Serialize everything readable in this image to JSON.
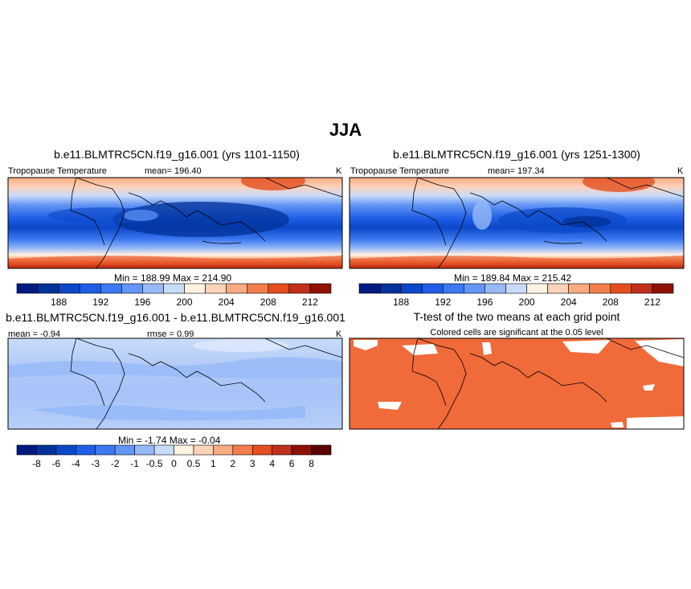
{
  "season": "JJA",
  "panels": [
    {
      "title": "b.e11.BLMTRC5CN.f19_g16.001 (yrs 1101-1150)",
      "left_label": "Tropopause Temperature",
      "mean_label": "mean= 196.40",
      "units": "K",
      "minmax": "Min = 188.99 Max = 214.90",
      "colorbar_ticks": [
        "188",
        "192",
        "196",
        "200",
        "204",
        "208",
        "212"
      ],
      "colorbar_colors": [
        "#001a82",
        "#00329a",
        "#0a48c8",
        "#1e5ee6",
        "#3c78f0",
        "#6496f5",
        "#96b9f8",
        "#c8dcfa",
        "#fff2e1",
        "#fcd2b9",
        "#f8aa80",
        "#f27f4b",
        "#e44f1f",
        "#c0301a",
        "#8f1208"
      ]
    },
    {
      "title": "b.e11.BLMTRC5CN.f19_g16.001 (yrs 1251-1300)",
      "left_label": "Tropopause Temperature",
      "mean_label": "mean= 197.34",
      "units": "K",
      "minmax": "Min = 189.84 Max = 215.42",
      "colorbar_ticks": [
        "188",
        "192",
        "196",
        "200",
        "204",
        "208",
        "212"
      ],
      "colorbar_colors": [
        "#001a82",
        "#00329a",
        "#0a48c8",
        "#1e5ee6",
        "#3c78f0",
        "#6496f5",
        "#96b9f8",
        "#c8dcfa",
        "#fff2e1",
        "#fcd2b9",
        "#f8aa80",
        "#f27f4b",
        "#e44f1f",
        "#c0301a",
        "#8f1208"
      ]
    },
    {
      "title": "b.e11.BLMTRC5CN.f19_g16.001 - b.e11.BLMTRC5CN.f19_g16.001",
      "mean_label": "mean =  -0.94",
      "rmse_label": "rmse =   0.99",
      "units": "K",
      "minmax": "Min =  -1.74 Max =  -0.04",
      "colorbar_ticks": [
        "-8",
        "-6",
        "-4",
        "-3",
        "-2",
        "-1",
        "-0.5",
        "0",
        "0.5",
        "1",
        "2",
        "3",
        "4",
        "6",
        "8"
      ],
      "colorbar_colors": [
        "#001a82",
        "#00329a",
        "#0a48c8",
        "#1e5ee6",
        "#3c78f0",
        "#6496f5",
        "#96b9f8",
        "#c8dcfa",
        "#fff2e1",
        "#fcd2b9",
        "#f8aa80",
        "#f27f4b",
        "#e44f1f",
        "#c0301a",
        "#8f1208",
        "#5a0000"
      ]
    },
    {
      "title": "T-test of the two means at each grid point",
      "subtitle": "Colored cells are significant at the 0.05 level",
      "fill_color": "#f06a3a"
    }
  ],
  "chart_data": [
    {
      "type": "heatmap",
      "title": "b.e11.BLMTRC5CN.f19_g16.001 (yrs 1101-1150)",
      "variable": "Tropopause Temperature",
      "units": "K",
      "mean": 196.4,
      "min": 188.99,
      "max": 214.9,
      "color_levels": [
        188,
        190,
        192,
        194,
        196,
        198,
        200,
        202,
        204,
        206,
        208,
        210,
        212,
        214
      ],
      "colorbar_ticks": [
        188,
        192,
        196,
        200,
        204,
        208,
        212
      ]
    },
    {
      "type": "heatmap",
      "title": "b.e11.BLMTRC5CN.f19_g16.001 (yrs 1251-1300)",
      "variable": "Tropopause Temperature",
      "units": "K",
      "mean": 197.34,
      "min": 189.84,
      "max": 215.42,
      "color_levels": [
        188,
        190,
        192,
        194,
        196,
        198,
        200,
        202,
        204,
        206,
        208,
        210,
        212,
        214
      ],
      "colorbar_ticks": [
        188,
        192,
        196,
        200,
        204,
        208,
        212
      ]
    },
    {
      "type": "heatmap",
      "title": "b.e11.BLMTRC5CN.f19_g16.001 - b.e11.BLMTRC5CN.f19_g16.001",
      "units": "K",
      "mean": -0.94,
      "rmse": 0.99,
      "min": -1.74,
      "max": -0.04,
      "color_levels": [
        -8,
        -6,
        -4,
        -3,
        -2,
        -1,
        -0.5,
        0,
        0.5,
        1,
        2,
        3,
        4,
        6,
        8
      ]
    },
    {
      "type": "heatmap",
      "title": "T-test of the two means at each grid point",
      "subtitle": "Colored cells are significant at the 0.05 level",
      "significance_level": 0.05
    }
  ]
}
